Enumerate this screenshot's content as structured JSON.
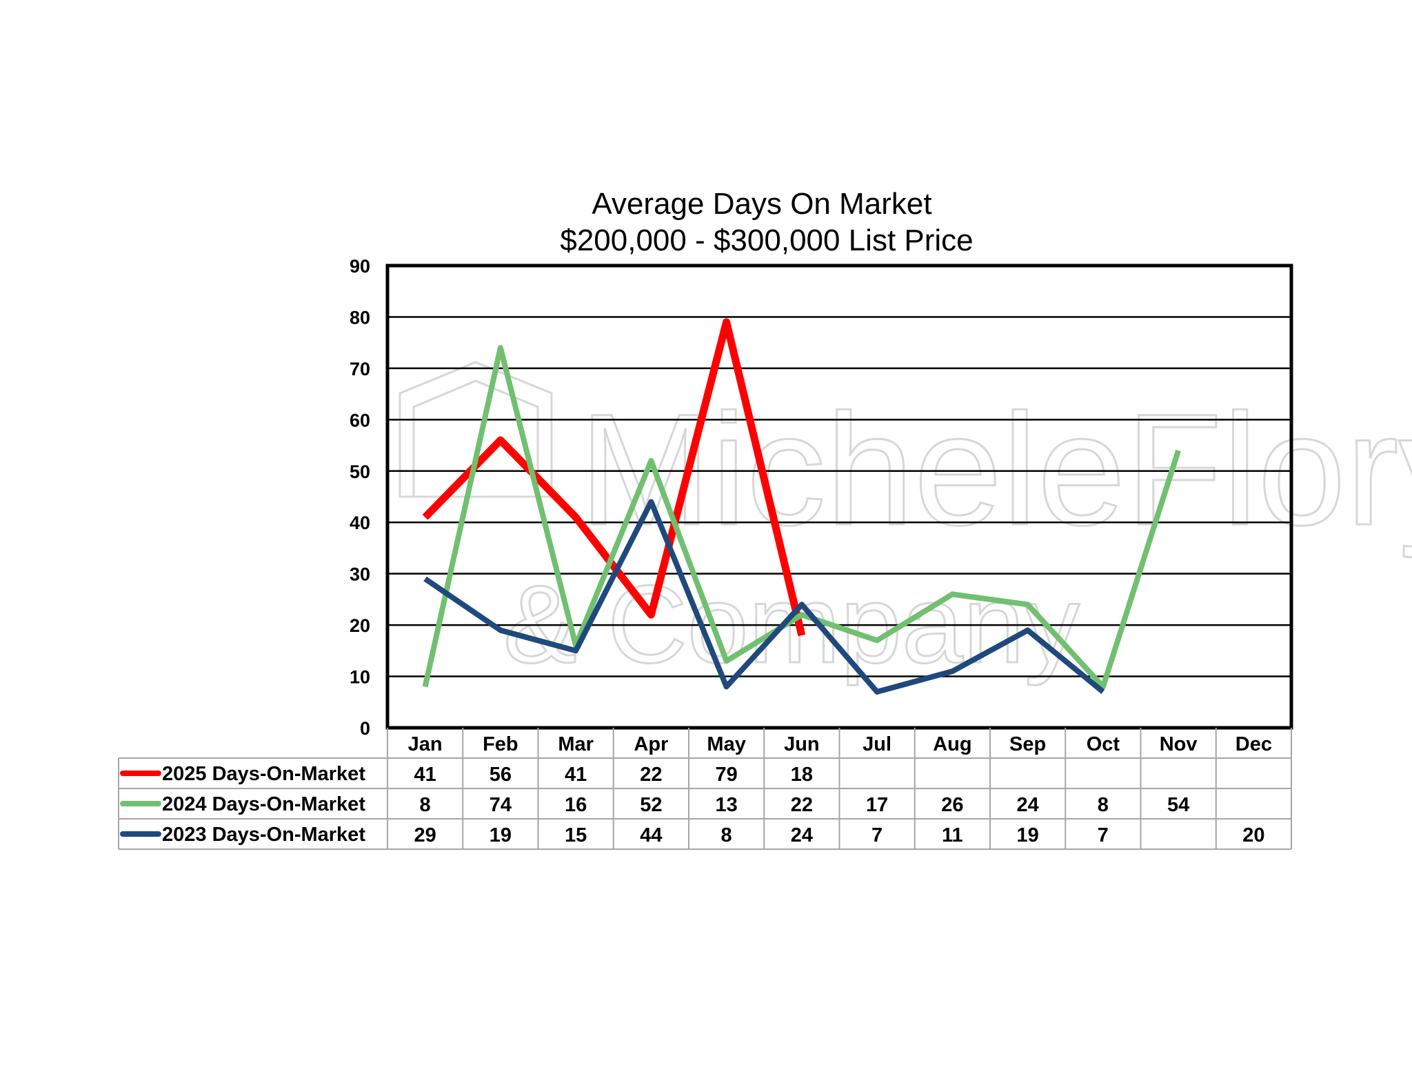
{
  "chart_data": {
    "type": "line",
    "title": "Average Days On Market",
    "subtitle": "$200,000 - $300,000 List Price",
    "categories": [
      "Jan",
      "Feb",
      "Mar",
      "Apr",
      "May",
      "Jun",
      "Jul",
      "Aug",
      "Sep",
      "Oct",
      "Nov",
      "Dec"
    ],
    "ylim": [
      0,
      90
    ],
    "yticks": [
      0,
      10,
      20,
      30,
      40,
      50,
      60,
      70,
      80,
      90
    ],
    "grid": true,
    "legend": "data table below chart",
    "series": [
      {
        "name": "2025 Days-On-Market",
        "color": "#ff0000",
        "values": [
          41,
          56,
          41,
          22,
          79,
          18,
          null,
          null,
          null,
          null,
          null,
          null
        ]
      },
      {
        "name": "2024 Days-On-Market",
        "color": "#70c070",
        "values": [
          8,
          74,
          16,
          52,
          13,
          22,
          17,
          26,
          24,
          8,
          54,
          null
        ]
      },
      {
        "name": "2023 Days-On-Market",
        "color": "#1f497d",
        "values": [
          29,
          19,
          15,
          44,
          8,
          24,
          7,
          11,
          19,
          7,
          null,
          20
        ]
      }
    ]
  },
  "watermark": {
    "line1": "MicheleFlory",
    "line2": "& Company",
    "icon": "house-logo-icon"
  }
}
